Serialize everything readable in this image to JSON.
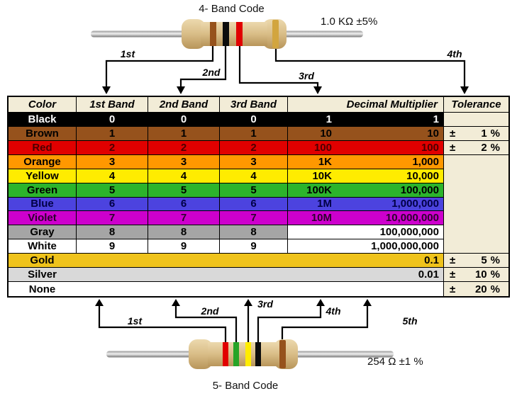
{
  "top": {
    "title": "4- Band Code",
    "value_label": "1.0 KΩ ±5%",
    "band_colors": [
      "#96521c",
      "#0d0d0d",
      "#e10000",
      "#d2a53f"
    ],
    "arrow_labels": [
      "1st",
      "2nd",
      "3rd",
      "4th"
    ]
  },
  "bottom": {
    "title": "5- Band Code",
    "value_label": "254 Ω ±1 %",
    "band_colors": [
      "#e10000",
      "#27a427",
      "#ffec00",
      "#0d0d0d",
      "#96521c"
    ],
    "arrow_labels": [
      "1st",
      "2nd",
      "3rd",
      "4th",
      "5th"
    ]
  },
  "table": {
    "headers": [
      "Color",
      "1st Band",
      "2nd Band",
      "3rd Band",
      "Decimal Multiplier",
      "Tolerance"
    ],
    "header_bg": "#f2ecd7",
    "tolerance_bg": "#f2ecd7",
    "tolerance_sign": "±",
    "percent_sign": "%",
    "rows": [
      {
        "color": "Black",
        "bg": "#000000",
        "fg": "#ffffff",
        "bands": [
          "0",
          "0",
          "0"
        ],
        "mult_prefix": "1",
        "multiplier": "1",
        "tolerance": ""
      },
      {
        "color": "Brown",
        "bg": "#96521c",
        "fg": "#000000",
        "bands": [
          "1",
          "1",
          "1"
        ],
        "mult_prefix": "10",
        "multiplier": "10",
        "tolerance": "1"
      },
      {
        "color": "Red",
        "bg": "#e10000",
        "fg": "#4d0000",
        "bands": [
          "2",
          "2",
          "2"
        ],
        "mult_prefix": "100",
        "multiplier": "100",
        "tolerance": "2"
      },
      {
        "color": "Orange",
        "bg": "#ff9800",
        "fg": "#000000",
        "bands": [
          "3",
          "3",
          "3"
        ],
        "mult_prefix": "1K",
        "multiplier": "1,000",
        "tolerance": ""
      },
      {
        "color": "Yellow",
        "bg": "#ffec00",
        "fg": "#000000",
        "bands": [
          "4",
          "4",
          "4"
        ],
        "mult_prefix": "10K",
        "multiplier": "10,000",
        "tolerance": ""
      },
      {
        "color": "Green",
        "bg": "#2cb42c",
        "fg": "#000000",
        "bands": [
          "5",
          "5",
          "5"
        ],
        "mult_prefix": "100K",
        "multiplier": "100,000",
        "tolerance": ""
      },
      {
        "color": "Blue",
        "bg": "#4c43df",
        "fg": "#000046",
        "bands": [
          "6",
          "6",
          "6"
        ],
        "mult_prefix": "1M",
        "multiplier": "1,000,000",
        "tolerance": ""
      },
      {
        "color": "Violet",
        "bg": "#cd00cd",
        "fg": "#2e002e",
        "bands": [
          "7",
          "7",
          "7"
        ],
        "mult_prefix": "10M",
        "multiplier": "10,000,000",
        "tolerance": ""
      },
      {
        "color": "Gray",
        "bg": "#a5a5a5",
        "fg": "#000000",
        "bands": [
          "8",
          "8",
          "8"
        ],
        "mult_prefix": "",
        "multiplier": "100,000,000",
        "tolerance": ""
      },
      {
        "color": "White",
        "bg": "#ffffff",
        "fg": "#000000",
        "bands": [
          "9",
          "9",
          "9"
        ],
        "mult_prefix": "",
        "multiplier": "1,000,000,000",
        "tolerance": ""
      },
      {
        "color": "Gold",
        "bg": "#efc31c",
        "fg": "#000000",
        "bands": [
          "",
          "",
          ""
        ],
        "mult_prefix": "",
        "multiplier": "0.1",
        "tolerance": "5"
      },
      {
        "color": "Silver",
        "bg": "#d9d9d9",
        "fg": "#000000",
        "bands": [
          "",
          "",
          ""
        ],
        "mult_prefix": "",
        "multiplier": "0.01",
        "tolerance": "10"
      },
      {
        "color": "None",
        "bg": "#ffffff",
        "fg": "#000000",
        "bands": [
          "",
          "",
          ""
        ],
        "mult_prefix": "",
        "multiplier": "",
        "tolerance": "20"
      }
    ]
  }
}
